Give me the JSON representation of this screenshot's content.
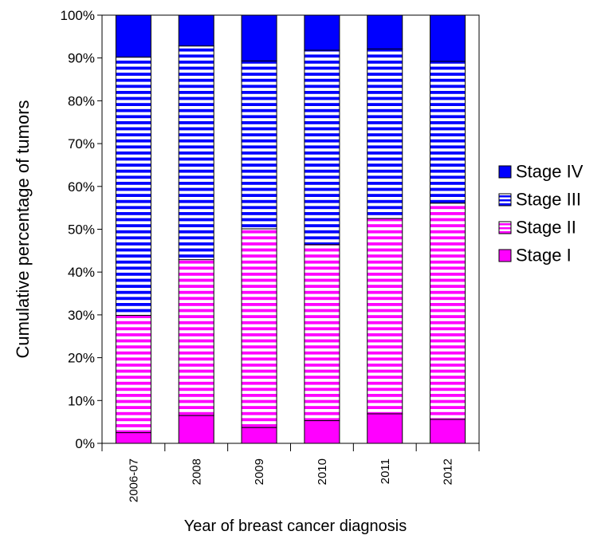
{
  "chart_data": {
    "type": "bar",
    "stacked": true,
    "title": "",
    "xlabel": "Year of breast cancer diagnosis",
    "ylabel": "Cumulative percentage of tumors",
    "ylim": [
      0,
      100
    ],
    "yticks": [
      0,
      10,
      20,
      30,
      40,
      50,
      60,
      70,
      80,
      90,
      100
    ],
    "ytick_labels": [
      "0%",
      "10%",
      "20%",
      "30%",
      "40%",
      "50%",
      "60%",
      "70%",
      "80%",
      "90%",
      "100%"
    ],
    "grid": false,
    "legend_position": "right",
    "categories": [
      "2006-07",
      "2008",
      "2009",
      "2010",
      "2011",
      "2012"
    ],
    "series": [
      {
        "name": "Stage I",
        "color": "#ff00ff",
        "pattern": "solid",
        "values": [
          2.5,
          6.5,
          3.7,
          5.3,
          6.9,
          5.6
        ]
      },
      {
        "name": "Stage II",
        "color": "#ff00ff",
        "pattern": "horizontal-stripes",
        "values": [
          27.4,
          36.4,
          46.4,
          41.1,
          45.6,
          50.5
        ]
      },
      {
        "name": "Stage III",
        "color": "#0000ff",
        "pattern": "horizontal-stripes",
        "values": [
          60.3,
          49.9,
          39.2,
          45.4,
          39.6,
          33.1
        ]
      },
      {
        "name": "Stage IV",
        "color": "#0000ff",
        "pattern": "solid",
        "values": [
          9.8,
          7.2,
          10.7,
          8.2,
          7.9,
          10.8
        ]
      }
    ],
    "legend_order": [
      "Stage IV",
      "Stage III",
      "Stage II",
      "Stage I"
    ]
  }
}
